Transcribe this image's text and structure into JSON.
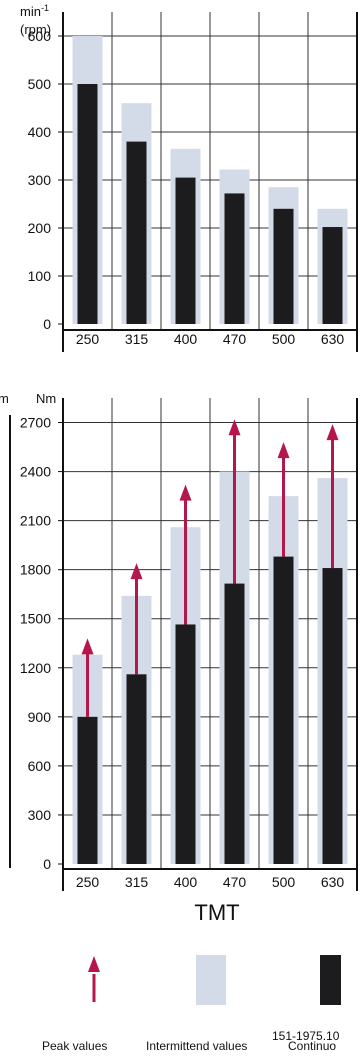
{
  "chart_data": [
    {
      "type": "bar",
      "ylabel_line1": "min",
      "ylabel_superscript": "-1",
      "ylabel_line2": "(rpm)",
      "ylim": [
        0,
        650
      ],
      "yticks": [
        0,
        100,
        200,
        300,
        400,
        500,
        600
      ],
      "grid": true,
      "categories": [
        "250",
        "315",
        "400",
        "470",
        "500",
        "630"
      ],
      "series": [
        {
          "name": "Intermittend values",
          "values": [
            600,
            460,
            365,
            322,
            285,
            240
          ]
        },
        {
          "name": "Continuous values",
          "values": [
            500,
            380,
            305,
            272,
            240,
            202
          ]
        }
      ],
      "colors": {
        "intermittent": "#d4dbe8",
        "continuous": "#1c1b1d"
      }
    },
    {
      "type": "bar",
      "ylabel": "Nm",
      "ylim": [
        0,
        2850
      ],
      "yticks": [
        0,
        300,
        600,
        900,
        1200,
        1500,
        1800,
        2100,
        2400,
        2700
      ],
      "grid": true,
      "categories": [
        "250",
        "315",
        "400",
        "470",
        "500",
        "630"
      ],
      "series": [
        {
          "name": "Intermittend values",
          "values": [
            1280,
            1640,
            2060,
            2400,
            2250,
            2360
          ]
        },
        {
          "name": "Continuous values",
          "values": [
            900,
            1160,
            1465,
            1715,
            1880,
            1810
          ]
        },
        {
          "name": "Peak values",
          "values": [
            1380,
            1840,
            2320,
            2720,
            2580,
            2690
          ]
        }
      ],
      "colors": {
        "intermittent": "#d4dbe8",
        "continuous": "#1c1b1d",
        "peak": "#b3174b"
      },
      "xlabel": "TMT"
    }
  ],
  "left_edge_text": "m",
  "legend": {
    "peak": "Peak values",
    "intermittent": "Intermittend values",
    "continuous": "Continuo"
  },
  "figure_code": "151-1975.10"
}
